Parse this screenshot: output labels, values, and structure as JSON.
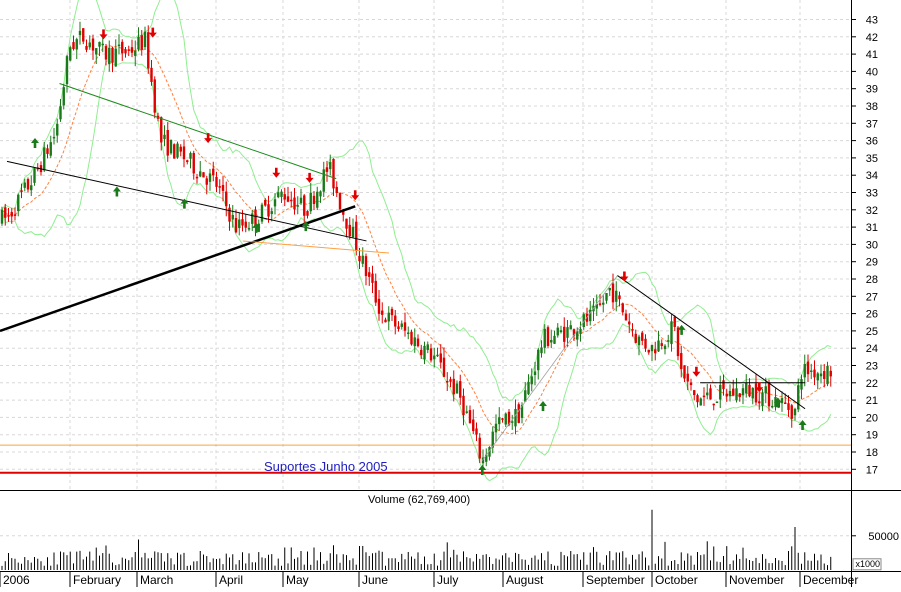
{
  "chart_data": [
    {
      "type": "candlestick",
      "title": "",
      "x_unit": "month",
      "months": [
        "2006",
        "February",
        "March",
        "April",
        "May",
        "June",
        "July",
        "August",
        "September",
        "October",
        "November",
        "December"
      ],
      "y_ticks": [
        17,
        18,
        19,
        20,
        21,
        22,
        23,
        24,
        25,
        26,
        27,
        28,
        29,
        30,
        31,
        32,
        33,
        34,
        35,
        36,
        37,
        38,
        39,
        40,
        41,
        42,
        43
      ],
      "ylim": [
        16.5,
        43.8
      ],
      "grid": true,
      "support_label": "Suportes Junho 2005",
      "support_levels": [
        18.4,
        16.8
      ],
      "colors": {
        "up": "#1a7a1a",
        "down": "#e00000",
        "upper_band": "#90ee90",
        "ma": "#ff8040",
        "support1": "#ffa040",
        "support2": "#e00000",
        "label": "#2020c0"
      },
      "price_path": [
        [
          0.1,
          31.5
        ],
        [
          0.5,
          34.0
        ],
        [
          0.8,
          36.5
        ],
        [
          1.0,
          41.5
        ],
        [
          1.2,
          42.0
        ],
        [
          1.5,
          41.0
        ],
        [
          1.9,
          41.2
        ],
        [
          2.1,
          41.8
        ],
        [
          2.3,
          36.0
        ],
        [
          2.6,
          35.0
        ],
        [
          3.0,
          33.5
        ],
        [
          3.3,
          31.0
        ],
        [
          3.6,
          31.5
        ],
        [
          4.0,
          33.0
        ],
        [
          4.3,
          32.0
        ],
        [
          4.6,
          34.5
        ],
        [
          4.8,
          31.8
        ],
        [
          4.9,
          30.8
        ],
        [
          5.0,
          29.5
        ],
        [
          5.3,
          26.0
        ],
        [
          5.6,
          25.0
        ],
        [
          6.0,
          23.5
        ],
        [
          6.4,
          21.0
        ],
        [
          6.7,
          17.5
        ],
        [
          6.9,
          19.5
        ],
        [
          7.2,
          20.2
        ],
        [
          7.5,
          24.5
        ],
        [
          7.8,
          25.0
        ],
        [
          8.2,
          26.0
        ],
        [
          8.4,
          27.5
        ],
        [
          8.6,
          26.0
        ],
        [
          8.8,
          24.5
        ],
        [
          9.0,
          24.0
        ],
        [
          9.3,
          25.2
        ],
        [
          9.4,
          22.5
        ],
        [
          9.6,
          21.0
        ],
        [
          9.9,
          21.3
        ],
        [
          10.3,
          21.6
        ],
        [
          10.7,
          21.0
        ],
        [
          10.95,
          20.3
        ],
        [
          11.0,
          22.7
        ]
      ],
      "volume": {
        "title": "Volume (62,769,400)",
        "ticks": [
          50000
        ],
        "multiplier": "x1000",
        "peak_values": [
          [
            9.0,
            88000
          ],
          [
            10.95,
            62769
          ]
        ]
      }
    }
  ]
}
